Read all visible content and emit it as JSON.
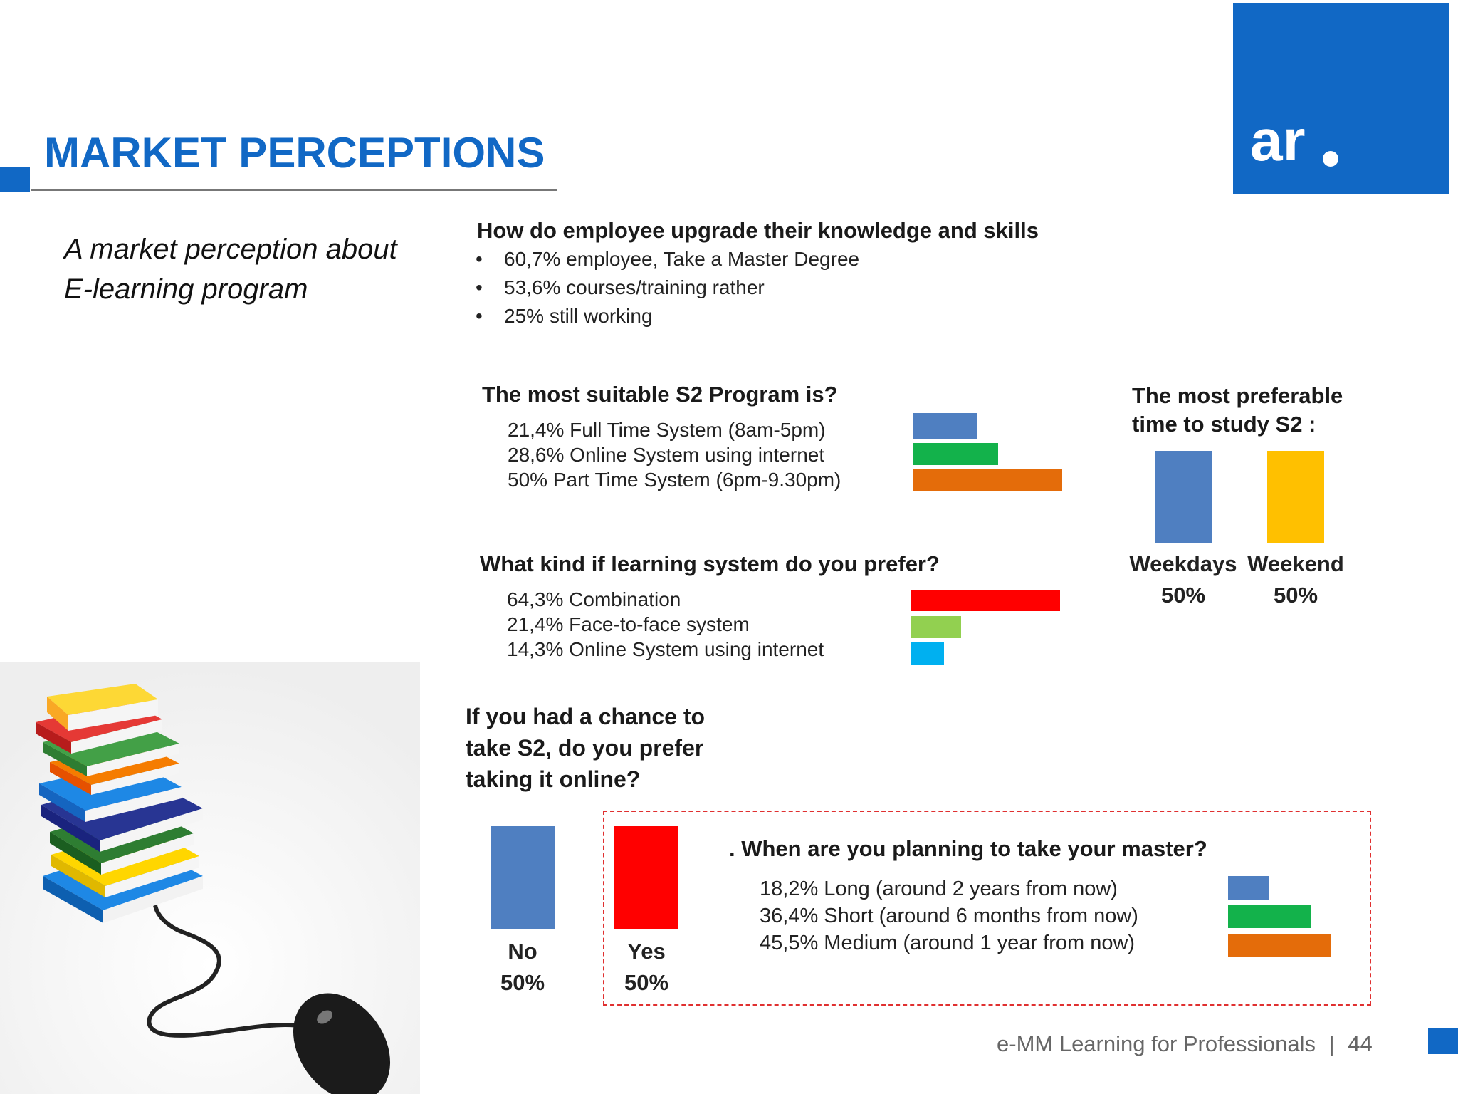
{
  "header": {
    "title": "MARKET PERCEPTIONS",
    "logo_text": "ar"
  },
  "subtitle": {
    "line1": "A market perception about",
    "line2": "E-learning program"
  },
  "knowledge": {
    "question": "How do employee  upgrade their knowledge and skills",
    "items": [
      "60,7% employee, Take a  Master Degree",
      "53,6%  courses/training rather",
      "25% still working"
    ]
  },
  "s2_program": {
    "question": "The most suitable S2 Program is?",
    "items": [
      {
        "label": "21,4% Full Time System (8am-5pm)",
        "value": 21.4,
        "color": "#4f7fc1"
      },
      {
        "label": "28,6% Online System using  internet",
        "value": 28.6,
        "color": "#13b24b"
      },
      {
        "label": "50% Part Time System (6pm-9.30pm)",
        "value": 50,
        "color": "#e46c0a"
      }
    ]
  },
  "learning_system": {
    "question": "What kind if learning system do you prefer?",
    "items": [
      {
        "label": "64,3% Combination",
        "value": 64.3,
        "color": "#ff0000"
      },
      {
        "label": "21,4% Face-to-face system",
        "value": 21.4,
        "color": "#92d050"
      },
      {
        "label": "14,3% Online System using  internet",
        "value": 14.3,
        "color": "#00b0f0"
      }
    ]
  },
  "study_time": {
    "question_line1": "The most preferable",
    "question_line2": "time to study S2 :",
    "items": [
      {
        "label": "Weekdays",
        "pct": "50%",
        "value": 50,
        "color": "#4f7fc1"
      },
      {
        "label": "Weekend",
        "pct": "50%",
        "value": 50,
        "color": "#ffc000"
      }
    ]
  },
  "online": {
    "question_line1": "If you had a chance to",
    "question_line2": "take S2, do you prefer",
    "question_line3": "taking it online?",
    "items": [
      {
        "label": "No",
        "pct": "50%",
        "value": 50,
        "color": "#4f7fc1"
      },
      {
        "label": "Yes",
        "pct": "50%",
        "value": 50,
        "color": "#ff0000"
      }
    ]
  },
  "master_plan": {
    "question": ". When are you planning to take your master?",
    "items": [
      {
        "label": "18,2% Long (around 2 years from now)",
        "value": 18.2,
        "color": "#4f7fc1"
      },
      {
        "label": "36,4% Short (around 6 months from now)",
        "value": 36.4,
        "color": "#13b24b"
      },
      {
        "label": "45,5% Medium (around 1 year from now)",
        "value": 45.5,
        "color": "#e46c0a"
      }
    ]
  },
  "footer": {
    "text": "e-MM Learning for Professionals",
    "separator": "|",
    "page": "44"
  }
}
